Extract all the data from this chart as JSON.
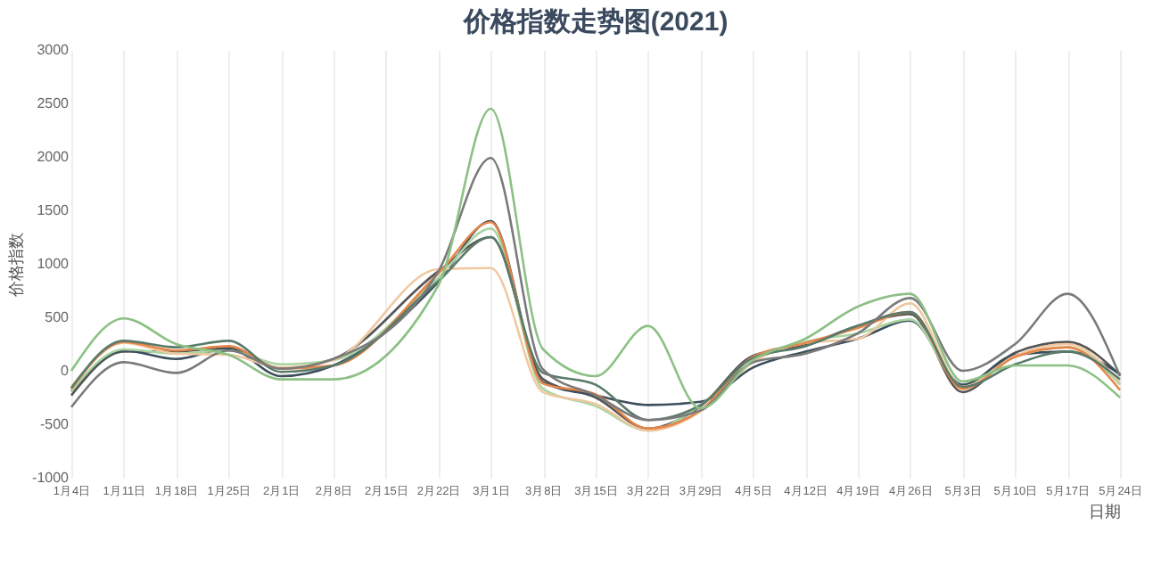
{
  "chart_data": {
    "type": "line",
    "title": "价格指数走势图(2021)",
    "xlabel": "日期",
    "ylabel": "价格指数",
    "x": [
      "2021-01-04",
      "2021-01-11",
      "2021-01-18",
      "2021-01-25",
      "2021-02-01",
      "2021-02-08",
      "2021-02-22",
      "2021-03-01",
      "2021-03-08",
      "2021-03-15",
      "2021-03-22",
      "2021-03-29",
      "2021-04-05",
      "2021-04-12",
      "2021-04-19",
      "2021-04-26",
      "2021-05-03",
      "2021-05-10",
      "2021-05-17",
      "2021-05-24"
    ],
    "xlim": [
      "2021-01-04",
      "2021-05-24"
    ],
    "xticks": [
      {
        "value": "2021-01-04",
        "label": "1月4日"
      },
      {
        "value": "2021-01-11",
        "label": "1月11日"
      },
      {
        "value": "2021-01-18",
        "label": "1月18日"
      },
      {
        "value": "2021-01-25",
        "label": "1月25日"
      },
      {
        "value": "2021-02-01",
        "label": "2月1日"
      },
      {
        "value": "2021-02-08",
        "label": "2月8日"
      },
      {
        "value": "2021-02-15",
        "label": "2月15日"
      },
      {
        "value": "2021-02-22",
        "label": "2月22日"
      },
      {
        "value": "2021-03-01",
        "label": "3月1日"
      },
      {
        "value": "2021-03-08",
        "label": "3月8日"
      },
      {
        "value": "2021-03-15",
        "label": "3月15日"
      },
      {
        "value": "2021-03-22",
        "label": "3月22日"
      },
      {
        "value": "2021-03-29",
        "label": "3月29日"
      },
      {
        "value": "2021-04-05",
        "label": "4月5日"
      },
      {
        "value": "2021-04-12",
        "label": "4月12日"
      },
      {
        "value": "2021-04-19",
        "label": "4月19日"
      },
      {
        "value": "2021-04-26",
        "label": "4月26日"
      },
      {
        "value": "2021-05-03",
        "label": "5月3日"
      },
      {
        "value": "2021-05-10",
        "label": "5月10日"
      },
      {
        "value": "2021-05-17",
        "label": "5月17日"
      },
      {
        "value": "2021-05-24",
        "label": "5月24日"
      }
    ],
    "ylim": [
      -1000,
      3000
    ],
    "yticks": [
      -1000,
      -500,
      0,
      500,
      1000,
      1500,
      2000,
      2500,
      3000
    ],
    "grid": "x",
    "legend": false,
    "series": [
      {
        "color": "#555555",
        "values": [
          -230,
          180,
          180,
          220,
          20,
          110,
          930,
          1250,
          -80,
          -250,
          -540,
          -330,
          140,
          240,
          420,
          530,
          -200,
          170,
          270,
          -40
        ]
      },
      {
        "color": "#3d4f5c",
        "values": [
          -190,
          190,
          110,
          210,
          -50,
          50,
          830,
          1400,
          -110,
          -230,
          -320,
          -290,
          30,
          180,
          300,
          470,
          -130,
          150,
          180,
          -30
        ]
      },
      {
        "color": "#a8d5a2",
        "values": [
          -190,
          200,
          160,
          190,
          60,
          100,
          870,
          1330,
          -170,
          -330,
          -560,
          -320,
          90,
          270,
          350,
          480,
          -150,
          130,
          220,
          -130
        ]
      },
      {
        "color": "#f0c8a0",
        "values": [
          -150,
          260,
          160,
          150,
          30,
          100,
          950,
          960,
          -200,
          -310,
          -560,
          -380,
          80,
          260,
          300,
          630,
          -150,
          140,
          250,
          -110
        ]
      },
      {
        "color": "#e8864a",
        "values": [
          -170,
          270,
          190,
          230,
          20,
          50,
          910,
          1390,
          -120,
          -220,
          -540,
          -370,
          130,
          260,
          400,
          550,
          -170,
          130,
          220,
          -180
        ]
      },
      {
        "color": "#5a7a6a",
        "values": [
          -160,
          280,
          220,
          280,
          -10,
          50,
          840,
          1250,
          -20,
          -130,
          -460,
          -320,
          120,
          230,
          420,
          550,
          -150,
          60,
          180,
          -80
        ]
      },
      {
        "color": "#7a7a7a",
        "values": [
          -340,
          80,
          -20,
          190,
          20,
          110,
          930,
          1990,
          10,
          -230,
          -460,
          -370,
          80,
          160,
          350,
          680,
          0,
          250,
          720,
          -50
        ]
      },
      {
        "color": "#8cc084",
        "values": [
          0,
          490,
          250,
          150,
          -80,
          -80,
          800,
          2450,
          200,
          -50,
          420,
          -350,
          100,
          300,
          600,
          720,
          -100,
          50,
          50,
          -250
        ]
      }
    ]
  }
}
